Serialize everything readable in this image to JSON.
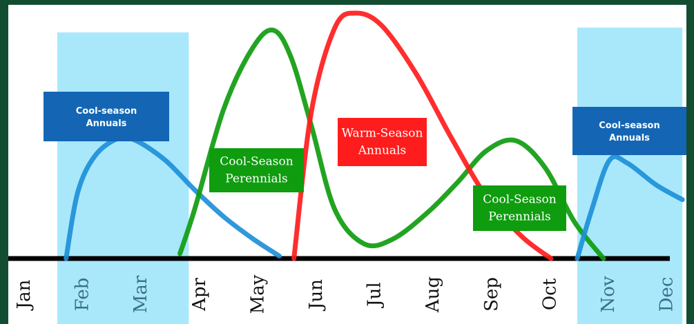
{
  "chart_data": {
    "type": "area",
    "title": "",
    "xlabel": "",
    "ylabel": "",
    "x_categories": [
      "Jan",
      "Feb",
      "Mar",
      "Apr",
      "May",
      "Jun",
      "Jul",
      "Aug",
      "Sep",
      "Oct",
      "Nov",
      "Dec"
    ],
    "ylim": [
      0,
      100
    ],
    "grid": false,
    "shaded_periods": [
      {
        "name": "cool-season-annuals-early",
        "from": 1.65,
        "to": 3.9
      },
      {
        "name": "cool-season-annuals-late",
        "from": 10.55,
        "to": 12.35
      }
    ],
    "series": [
      {
        "name": "Cool-season Annuals",
        "color": "#1e8fd8",
        "points": [
          [
            1.8,
            0
          ],
          [
            2.0,
            27
          ],
          [
            2.3,
            42
          ],
          [
            2.7,
            49
          ],
          [
            3.0,
            48
          ],
          [
            3.5,
            40
          ],
          [
            4.0,
            28
          ],
          [
            4.5,
            17
          ],
          [
            5.0,
            8
          ],
          [
            5.45,
            1
          ]
        ]
      },
      {
        "name": "Cool-Season Perennials",
        "color": "#0f9c0f",
        "points": [
          [
            3.75,
            2
          ],
          [
            4.0,
            20
          ],
          [
            4.5,
            61
          ],
          [
            5.0,
            86
          ],
          [
            5.35,
            93
          ],
          [
            5.65,
            82
          ],
          [
            6.0,
            54
          ],
          [
            6.4,
            20
          ],
          [
            6.9,
            6
          ],
          [
            7.4,
            8
          ],
          [
            8.0,
            19
          ],
          [
            8.5,
            31
          ],
          [
            9.0,
            44
          ],
          [
            9.5,
            48
          ],
          [
            10.0,
            37
          ],
          [
            10.5,
            15
          ],
          [
            11.0,
            0
          ]
        ]
      },
      {
        "name": "Warm-Season Annuals",
        "color": "#ff1c1c",
        "points": [
          [
            5.7,
            0
          ],
          [
            6.0,
            60
          ],
          [
            6.4,
            94
          ],
          [
            6.75,
            100
          ],
          [
            7.2,
            95
          ],
          [
            7.8,
            75
          ],
          [
            8.4,
            49
          ],
          [
            9.0,
            25
          ],
          [
            9.6,
            9
          ],
          [
            10.1,
            0
          ]
        ]
      },
      {
        "name": "Cool-season Annuals",
        "color": "#1e8fd8",
        "points": [
          [
            10.55,
            0
          ],
          [
            10.8,
            20
          ],
          [
            11.1,
            40
          ],
          [
            11.4,
            39
          ],
          [
            11.9,
            30
          ],
          [
            12.35,
            24
          ]
        ]
      }
    ],
    "annotations": [
      {
        "text": [
          "Cool-season",
          "Annuals"
        ],
        "color": "#1466b4"
      },
      {
        "text": [
          "Cool-Season",
          "Perennials"
        ],
        "color": "#0f9c0f"
      },
      {
        "text": [
          "Warm-Season",
          "Annuals"
        ],
        "color": "#ff1c1c"
      },
      {
        "text": [
          "Cool-Season",
          "Perennials"
        ],
        "color": "#0f9c0f"
      },
      {
        "text": [
          "Cool-season",
          "Annuals"
        ],
        "color": "#1466b4"
      }
    ]
  },
  "colors": {
    "background": "#124d32",
    "plot_area": "#ffffff",
    "shading": "#a9e8fb",
    "axis": "#000000",
    "month_dark": "#111111",
    "month_shaded": "#3a6f8a"
  }
}
